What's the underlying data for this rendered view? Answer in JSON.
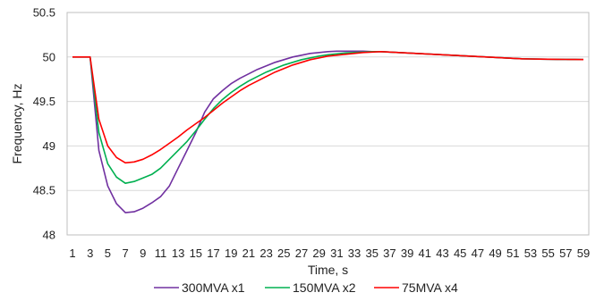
{
  "chart_data": {
    "type": "line",
    "title": "",
    "xlabel": "Time, s",
    "ylabel": "Frequency, Hz",
    "x_tick_labels": [
      1,
      3,
      5,
      7,
      9,
      11,
      13,
      15,
      17,
      19,
      21,
      23,
      25,
      27,
      29,
      31,
      33,
      35,
      37,
      39,
      41,
      43,
      45,
      47,
      49,
      51,
      53,
      55,
      57,
      59
    ],
    "y_ticks": [
      48,
      48.5,
      49,
      49.5,
      50,
      50.5
    ],
    "ylim": [
      48,
      50.5
    ],
    "xlim": [
      1,
      59
    ],
    "grid": "horizontal",
    "legend_position": "bottom",
    "x": [
      1,
      2,
      3,
      4,
      5,
      6,
      7,
      8,
      9,
      10,
      11,
      12,
      13,
      14,
      15,
      16,
      17,
      18,
      19,
      20,
      21,
      22,
      23,
      24,
      25,
      26,
      27,
      28,
      29,
      30,
      31,
      32,
      33,
      34,
      35,
      36,
      37,
      38,
      39,
      40,
      41,
      42,
      43,
      44,
      45,
      46,
      47,
      48,
      49,
      50,
      51,
      52,
      53,
      54,
      55,
      56,
      57,
      58,
      59
    ],
    "series": [
      {
        "name": "300MVA x1",
        "color": "#7030A0",
        "values": [
          50,
          50,
          50,
          48.95,
          48.55,
          48.35,
          48.25,
          48.26,
          48.3,
          48.36,
          48.43,
          48.55,
          48.75,
          48.95,
          49.15,
          49.38,
          49.53,
          49.62,
          49.7,
          49.76,
          49.81,
          49.86,
          49.9,
          49.94,
          49.97,
          50,
          50.02,
          50.04,
          50.05,
          50.06,
          50.065,
          50.065,
          50.065,
          50.065,
          50.06,
          50.06,
          50.055,
          50.05,
          50.045,
          50.04,
          50.035,
          50.03,
          50.025,
          50.02,
          50.015,
          50.01,
          50.005,
          50,
          49.995,
          49.99,
          49.985,
          49.98,
          49.978,
          49.976,
          49.975,
          49.974,
          49.973,
          49.972,
          49.971
        ]
      },
      {
        "name": "150MVA x2",
        "color": "#00B050",
        "values": [
          50,
          50,
          50,
          49.15,
          48.8,
          48.65,
          48.58,
          48.6,
          48.64,
          48.68,
          48.75,
          48.85,
          48.95,
          49.05,
          49.17,
          49.3,
          49.42,
          49.52,
          49.6,
          49.67,
          49.73,
          49.78,
          49.83,
          49.87,
          49.91,
          49.94,
          49.97,
          49.99,
          50.01,
          50.025,
          50.035,
          50.045,
          50.05,
          50.055,
          50.06,
          50.06,
          50.055,
          50.05,
          50.045,
          50.04,
          50.035,
          50.03,
          50.025,
          50.02,
          50.015,
          50.01,
          50.005,
          50,
          49.995,
          49.99,
          49.985,
          49.98,
          49.978,
          49.976,
          49.975,
          49.974,
          49.973,
          49.972,
          49.971
        ]
      },
      {
        "name": "75MVA x4",
        "color": "#FF0000",
        "values": [
          50,
          50,
          50,
          49.3,
          49.0,
          48.87,
          48.81,
          48.82,
          48.85,
          48.9,
          48.96,
          49.03,
          49.1,
          49.18,
          49.25,
          49.32,
          49.4,
          49.48,
          49.55,
          49.62,
          49.68,
          49.73,
          49.78,
          49.83,
          49.87,
          49.91,
          49.94,
          49.97,
          49.99,
          50.01,
          50.02,
          50.03,
          50.04,
          50.05,
          50.055,
          50.06,
          50.055,
          50.05,
          50.045,
          50.04,
          50.035,
          50.03,
          50.025,
          50.02,
          50.015,
          50.01,
          50.005,
          50,
          49.995,
          49.99,
          49.985,
          49.98,
          49.978,
          49.976,
          49.975,
          49.974,
          49.973,
          49.972,
          49.971
        ]
      }
    ]
  }
}
